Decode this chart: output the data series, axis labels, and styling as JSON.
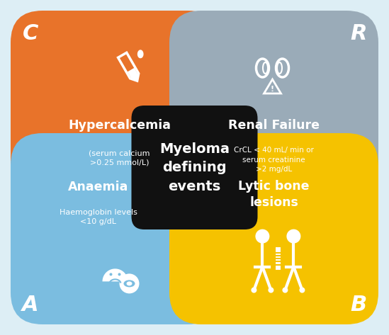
{
  "bg_color": "#ddeef5",
  "quadrants": [
    {
      "label": "C",
      "title": "Hypercalcemia",
      "subtitle": "(serum calcium\n>0.25 mmol/L)",
      "color": "#E8732A",
      "text_color": "#ffffff",
      "position": "top-left"
    },
    {
      "label": "R",
      "title": "Renal Failure",
      "subtitle": "CrCL < 40 mL/ min or\nserum creatinine\n>2 mg/dL",
      "color": "#9AABB8",
      "text_color": "#ffffff",
      "position": "top-right"
    },
    {
      "label": "A",
      "title": "Anaemia",
      "subtitle": "Haemoglobin levels\n<10 g/dL",
      "color": "#7BBDE0",
      "text_color": "#ffffff",
      "position": "bottom-left"
    },
    {
      "label": "B",
      "title": "Lytic bone\nlesions",
      "subtitle": "",
      "color": "#F5C200",
      "text_color": "#ffffff",
      "position": "bottom-right"
    }
  ],
  "center_text": "Myeloma\ndefining\nevents",
  "center_color": "#111111",
  "center_text_color": "#ffffff"
}
